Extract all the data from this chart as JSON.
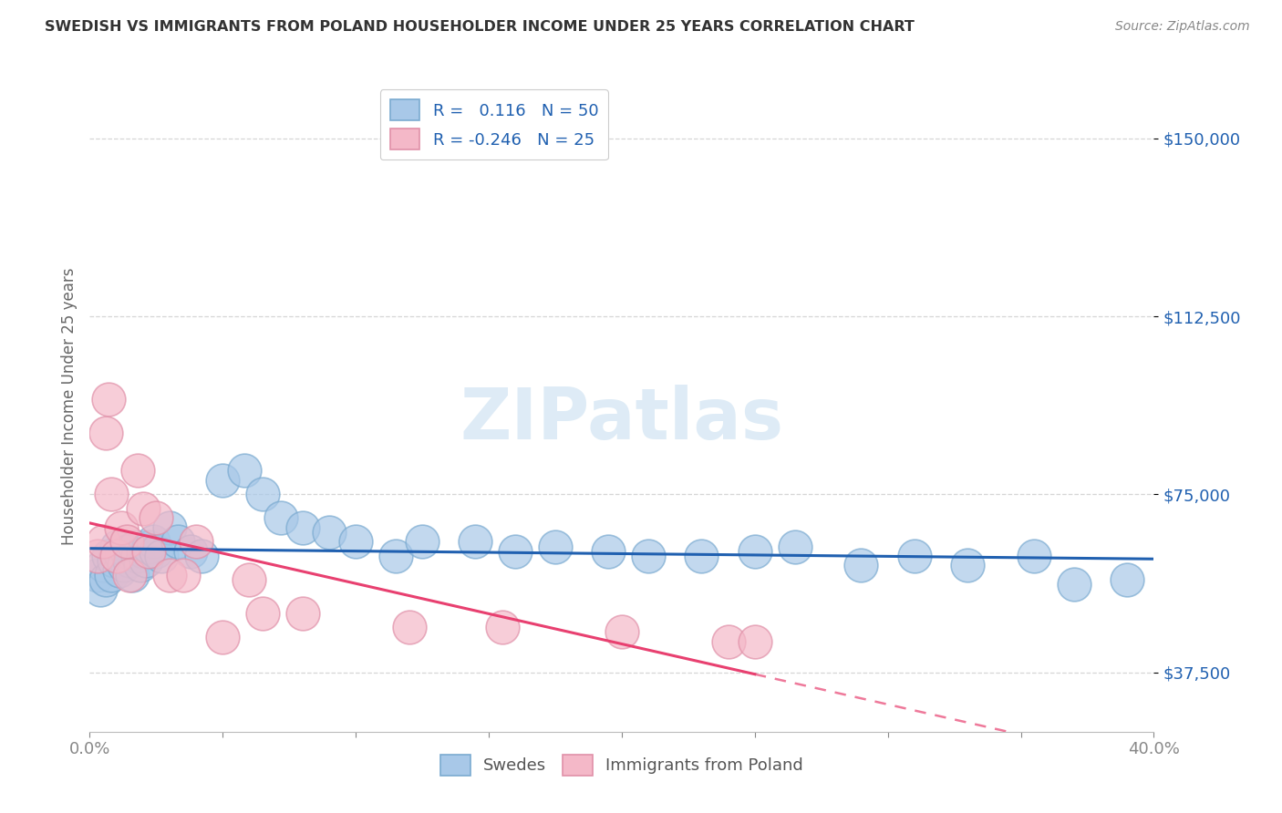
{
  "title": "SWEDISH VS IMMIGRANTS FROM POLAND HOUSEHOLDER INCOME UNDER 25 YEARS CORRELATION CHART",
  "source": "Source: ZipAtlas.com",
  "ylabel": "Householder Income Under 25 years",
  "yticks": [
    37500,
    75000,
    112500,
    150000
  ],
  "ytick_labels": [
    "$37,500",
    "$75,000",
    "$112,500",
    "$150,000"
  ],
  "xlim": [
    0.0,
    0.4
  ],
  "ylim": [
    25000,
    162000
  ],
  "watermark": "ZIPatlas",
  "legend_r_blue": "0.116",
  "legend_n_blue": "50",
  "legend_r_pink": "-0.246",
  "legend_n_pink": "25",
  "blue_color": "#a8c8e8",
  "pink_color": "#f4b8c8",
  "line_blue": "#2060b0",
  "line_pink": "#e84070",
  "swedes_x": [
    0.003,
    0.004,
    0.005,
    0.006,
    0.007,
    0.008,
    0.009,
    0.01,
    0.011,
    0.012,
    0.013,
    0.014,
    0.015,
    0.016,
    0.017,
    0.018,
    0.019,
    0.02,
    0.021,
    0.022,
    0.024,
    0.025,
    0.027,
    0.03,
    0.033,
    0.038,
    0.042,
    0.05,
    0.058,
    0.065,
    0.072,
    0.08,
    0.09,
    0.1,
    0.115,
    0.125,
    0.145,
    0.16,
    0.175,
    0.195,
    0.21,
    0.23,
    0.25,
    0.265,
    0.29,
    0.31,
    0.33,
    0.355,
    0.37,
    0.39
  ],
  "swedes_y": [
    58000,
    55000,
    60000,
    57000,
    62000,
    58000,
    61000,
    64000,
    59000,
    62000,
    60000,
    63000,
    61000,
    58000,
    64000,
    62000,
    60000,
    63000,
    61000,
    64000,
    65000,
    63000,
    62000,
    68000,
    65000,
    63000,
    62000,
    78000,
    80000,
    75000,
    70000,
    68000,
    67000,
    65000,
    62000,
    65000,
    65000,
    63000,
    64000,
    63000,
    62000,
    62000,
    63000,
    64000,
    60000,
    62000,
    60000,
    62000,
    56000,
    57000
  ],
  "poland_x": [
    0.003,
    0.005,
    0.006,
    0.007,
    0.008,
    0.01,
    0.012,
    0.014,
    0.015,
    0.018,
    0.02,
    0.022,
    0.025,
    0.03,
    0.035,
    0.04,
    0.05,
    0.06,
    0.065,
    0.08,
    0.12,
    0.155,
    0.2,
    0.24,
    0.25
  ],
  "poland_y": [
    62000,
    65000,
    88000,
    95000,
    75000,
    62000,
    68000,
    65000,
    58000,
    80000,
    72000,
    63000,
    70000,
    58000,
    58000,
    65000,
    45000,
    57000,
    50000,
    50000,
    47000,
    47000,
    46000,
    44000,
    44000
  ]
}
